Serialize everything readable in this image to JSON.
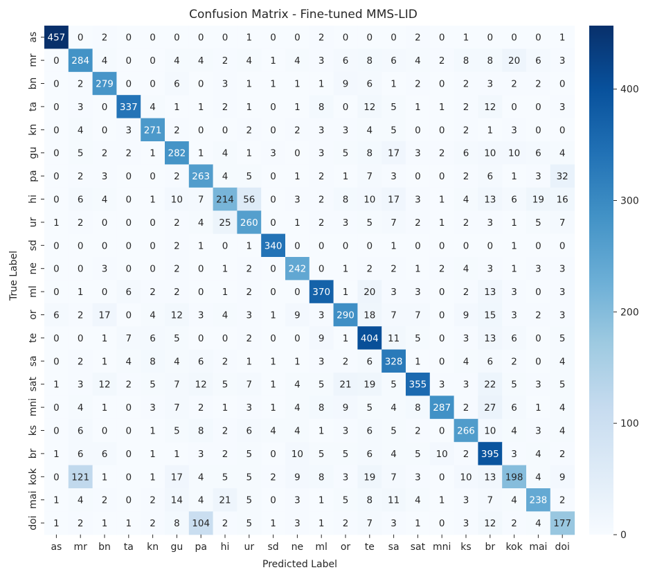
{
  "chart_data": {
    "type": "heatmap",
    "title": "Confusion Matrix - Fine-tuned MMS-LID",
    "xlabel": "Predicted Label",
    "ylabel": "True Label",
    "labels": [
      "as",
      "mr",
      "bn",
      "ta",
      "kn",
      "gu",
      "pa",
      "hi",
      "ur",
      "sd",
      "ne",
      "ml",
      "or",
      "te",
      "sa",
      "sat",
      "mni",
      "ks",
      "br",
      "kok",
      "mai",
      "doi"
    ],
    "matrix": [
      [
        457,
        0,
        2,
        0,
        0,
        0,
        0,
        0,
        1,
        0,
        0,
        2,
        0,
        0,
        0,
        2,
        0,
        1,
        0,
        0,
        0,
        1
      ],
      [
        0,
        284,
        4,
        0,
        0,
        4,
        4,
        2,
        4,
        1,
        4,
        3,
        6,
        8,
        6,
        4,
        2,
        8,
        8,
        20,
        6,
        3
      ],
      [
        0,
        2,
        279,
        0,
        0,
        6,
        0,
        3,
        1,
        1,
        1,
        1,
        9,
        6,
        1,
        2,
        0,
        2,
        3,
        2,
        2,
        0
      ],
      [
        0,
        3,
        0,
        337,
        4,
        1,
        1,
        2,
        1,
        0,
        1,
        8,
        0,
        12,
        5,
        1,
        1,
        2,
        12,
        0,
        0,
        3
      ],
      [
        0,
        4,
        0,
        3,
        271,
        2,
        0,
        0,
        2,
        0,
        2,
        3,
        3,
        4,
        5,
        0,
        0,
        2,
        1,
        3,
        0,
        0
      ],
      [
        0,
        5,
        2,
        2,
        1,
        282,
        1,
        4,
        1,
        3,
        0,
        3,
        5,
        8,
        17,
        3,
        2,
        6,
        10,
        10,
        6,
        4
      ],
      [
        0,
        2,
        3,
        0,
        0,
        2,
        263,
        4,
        5,
        0,
        1,
        2,
        1,
        7,
        3,
        0,
        0,
        2,
        6,
        1,
        3,
        32
      ],
      [
        0,
        6,
        4,
        0,
        1,
        10,
        7,
        214,
        56,
        0,
        3,
        2,
        8,
        10,
        17,
        3,
        1,
        4,
        13,
        6,
        19,
        16
      ],
      [
        1,
        2,
        0,
        0,
        0,
        2,
        4,
        25,
        260,
        0,
        1,
        2,
        3,
        5,
        7,
        2,
        1,
        2,
        3,
        1,
        5,
        7
      ],
      [
        0,
        0,
        0,
        0,
        0,
        2,
        1,
        0,
        1,
        340,
        0,
        0,
        0,
        0,
        1,
        0,
        0,
        0,
        0,
        1,
        0,
        0
      ],
      [
        0,
        0,
        3,
        0,
        0,
        2,
        0,
        1,
        2,
        0,
        242,
        0,
        1,
        2,
        2,
        1,
        2,
        4,
        3,
        1,
        3,
        3
      ],
      [
        0,
        1,
        0,
        6,
        2,
        2,
        0,
        1,
        2,
        0,
        0,
        370,
        1,
        20,
        3,
        3,
        0,
        2,
        13,
        3,
        0,
        3
      ],
      [
        6,
        2,
        17,
        0,
        4,
        12,
        3,
        4,
        3,
        1,
        9,
        3,
        290,
        18,
        7,
        7,
        0,
        9,
        15,
        3,
        2,
        3
      ],
      [
        0,
        0,
        1,
        7,
        6,
        5,
        0,
        0,
        2,
        0,
        0,
        9,
        1,
        404,
        11,
        5,
        0,
        3,
        13,
        6,
        0,
        5
      ],
      [
        0,
        2,
        1,
        4,
        8,
        4,
        6,
        2,
        1,
        1,
        1,
        3,
        2,
        6,
        328,
        1,
        0,
        4,
        6,
        2,
        0,
        4
      ],
      [
        1,
        3,
        12,
        2,
        5,
        7,
        12,
        5,
        7,
        1,
        4,
        5,
        21,
        19,
        5,
        355,
        3,
        3,
        22,
        5,
        3,
        5
      ],
      [
        0,
        4,
        1,
        0,
        3,
        7,
        2,
        1,
        3,
        1,
        4,
        8,
        9,
        5,
        4,
        8,
        287,
        2,
        27,
        6,
        1,
        4
      ],
      [
        0,
        6,
        0,
        0,
        1,
        5,
        8,
        2,
        6,
        4,
        4,
        1,
        3,
        6,
        5,
        2,
        0,
        266,
        10,
        4,
        3,
        4
      ],
      [
        1,
        6,
        6,
        0,
        1,
        1,
        3,
        2,
        5,
        0,
        10,
        5,
        5,
        6,
        4,
        5,
        10,
        2,
        395,
        3,
        4,
        2
      ],
      [
        0,
        121,
        1,
        0,
        1,
        17,
        4,
        5,
        5,
        2,
        9,
        8,
        3,
        19,
        7,
        3,
        0,
        10,
        13,
        198,
        4,
        9
      ],
      [
        1,
        4,
        2,
        0,
        2,
        14,
        4,
        21,
        5,
        0,
        3,
        1,
        5,
        8,
        11,
        4,
        1,
        3,
        7,
        4,
        238,
        2
      ],
      [
        1,
        2,
        1,
        1,
        2,
        8,
        104,
        2,
        5,
        1,
        3,
        1,
        2,
        7,
        3,
        1,
        0,
        3,
        12,
        2,
        4,
        177
      ]
    ],
    "vmin": 0,
    "vmax": 457,
    "colorbar_ticks": [
      0,
      100,
      200,
      300,
      400
    ],
    "colormap": "Blues",
    "colors": {
      "low": "#f7fbff",
      "high": "#08306b",
      "text_dark": "#262626",
      "text_light": "#ffffff"
    }
  }
}
